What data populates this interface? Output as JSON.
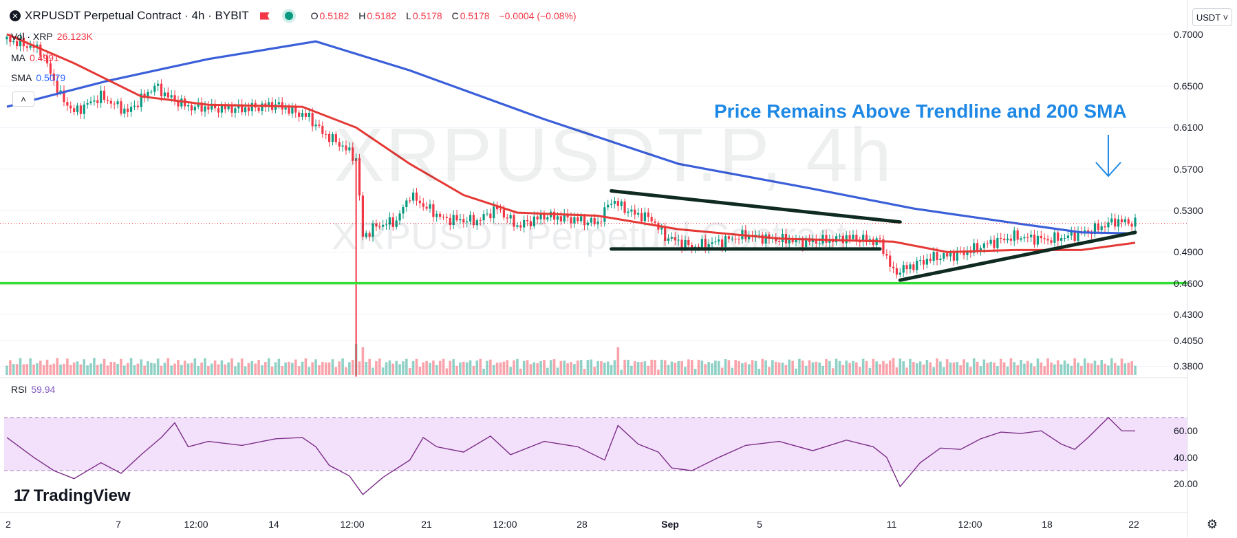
{
  "header": {
    "symbol_icon": "xrp-coin-icon",
    "title": "XRPUSDT Perpetual Contract · 4h · BYBIT",
    "flag_icon": "red-flag-icon",
    "status_icon": "market-open-dot-icon",
    "ohlc": {
      "o_label": "O",
      "o": "0.5182",
      "h_label": "H",
      "h": "0.5182",
      "l_label": "L",
      "l": "0.5178",
      "c_label": "C",
      "c": "0.5178",
      "change": "−0.0004 (−0.08%)"
    },
    "currency_button": "USDT ˅"
  },
  "legends": [
    {
      "name": "Vol · XRP",
      "value": "26.123K",
      "color": "#f23645"
    },
    {
      "name": "MA",
      "value": "0.4991",
      "color": "#f23645"
    },
    {
      "name": "SMA",
      "value": "0.5079",
      "color": "#2962ff"
    }
  ],
  "collapse_label": "˄",
  "watermark": {
    "line1": "XRPUSDT.P, 4h",
    "line2": "XRPUSDT Perpetual Contract"
  },
  "annotation": "Price Remains Above Trendline and 200 SMA",
  "rsi_legend": {
    "name": "RSI",
    "value": "59.94",
    "color": "#7e57c2"
  },
  "price_axis": [
    "0.7000",
    "0.6500",
    "0.6100",
    "0.5700",
    "0.5300",
    "0.4900",
    "0.4600",
    "0.4300",
    "0.4050",
    "0.3800"
  ],
  "rsi_axis": [
    "60.00",
    "40.00",
    "20.00"
  ],
  "time_axis": [
    {
      "label": "2",
      "bold": false
    },
    {
      "label": "7",
      "bold": false
    },
    {
      "label": "12:00",
      "bold": false
    },
    {
      "label": "14",
      "bold": false
    },
    {
      "label": "12:00",
      "bold": false
    },
    {
      "label": "21",
      "bold": false
    },
    {
      "label": "12:00",
      "bold": false
    },
    {
      "label": "28",
      "bold": false
    },
    {
      "label": "Sep",
      "bold": true
    },
    {
      "label": "5",
      "bold": false
    },
    {
      "label": "11",
      "bold": false
    },
    {
      "label": "12:00",
      "bold": false
    },
    {
      "label": "18",
      "bold": false
    },
    {
      "label": "22",
      "bold": false
    }
  ],
  "brand": "TradingView",
  "brand_icon": "tradingview-logo-icon",
  "settings_icon": "gear-icon",
  "colors": {
    "up": "#089981",
    "down": "#f23645",
    "ma": "#e53935",
    "sma": "#3a5fd9",
    "support": "#33dd33",
    "trendline": "#0f2a20",
    "rsi": "#7b2d87",
    "rsi_band": "#f3e1fb",
    "arrow": "#1e88e5"
  },
  "chart_data": {
    "type": "candlestick",
    "price_axis_range": [
      0.365,
      0.715
    ],
    "rsi_range": [
      0,
      100
    ],
    "rsi_band": [
      30,
      70
    ],
    "support_level": 0.46,
    "last_price_line": 0.5178,
    "price_path": [
      {
        "t": 0,
        "p": 0.695
      },
      {
        "t": 5,
        "p": 0.685
      },
      {
        "t": 8,
        "p": 0.64
      },
      {
        "t": 10,
        "p": 0.625
      },
      {
        "t": 14,
        "p": 0.64
      },
      {
        "t": 18,
        "p": 0.625
      },
      {
        "t": 22,
        "p": 0.65
      },
      {
        "t": 24,
        "p": 0.64
      },
      {
        "t": 27,
        "p": 0.63
      },
      {
        "t": 35,
        "p": 0.628
      },
      {
        "t": 40,
        "p": 0.632
      },
      {
        "t": 45,
        "p": 0.62
      },
      {
        "t": 47,
        "p": 0.605
      },
      {
        "t": 50,
        "p": 0.592
      },
      {
        "t": 52,
        "p": 0.58
      },
      {
        "t": 53,
        "p": 0.505
      },
      {
        "t": 55,
        "p": 0.515
      },
      {
        "t": 58,
        "p": 0.52
      },
      {
        "t": 60,
        "p": 0.545
      },
      {
        "t": 62,
        "p": 0.535
      },
      {
        "t": 65,
        "p": 0.522
      },
      {
        "t": 70,
        "p": 0.52
      },
      {
        "t": 73,
        "p": 0.532
      },
      {
        "t": 76,
        "p": 0.515
      },
      {
        "t": 80,
        "p": 0.525
      },
      {
        "t": 84,
        "p": 0.522
      },
      {
        "t": 88,
        "p": 0.518
      },
      {
        "t": 90,
        "p": 0.54
      },
      {
        "t": 93,
        "p": 0.528
      },
      {
        "t": 96,
        "p": 0.522
      },
      {
        "t": 98,
        "p": 0.505
      },
      {
        "t": 102,
        "p": 0.495
      },
      {
        "t": 106,
        "p": 0.5
      },
      {
        "t": 110,
        "p": 0.506
      },
      {
        "t": 115,
        "p": 0.502
      },
      {
        "t": 120,
        "p": 0.5
      },
      {
        "t": 125,
        "p": 0.504
      },
      {
        "t": 130,
        "p": 0.5
      },
      {
        "t": 132,
        "p": 0.47
      },
      {
        "t": 134,
        "p": 0.475
      },
      {
        "t": 138,
        "p": 0.485
      },
      {
        "t": 142,
        "p": 0.488
      },
      {
        "t": 146,
        "p": 0.498
      },
      {
        "t": 150,
        "p": 0.505
      },
      {
        "t": 155,
        "p": 0.502
      },
      {
        "t": 158,
        "p": 0.505
      },
      {
        "t": 162,
        "p": 0.512
      },
      {
        "t": 165,
        "p": 0.52
      },
      {
        "t": 168,
        "p": 0.518
      }
    ],
    "ma_path": [
      {
        "t": 0,
        "p": 0.7
      },
      {
        "t": 10,
        "p": 0.672
      },
      {
        "t": 20,
        "p": 0.64
      },
      {
        "t": 30,
        "p": 0.632
      },
      {
        "t": 44,
        "p": 0.63
      },
      {
        "t": 52,
        "p": 0.61
      },
      {
        "t": 60,
        "p": 0.575
      },
      {
        "t": 68,
        "p": 0.545
      },
      {
        "t": 76,
        "p": 0.528
      },
      {
        "t": 88,
        "p": 0.525
      },
      {
        "t": 100,
        "p": 0.512
      },
      {
        "t": 115,
        "p": 0.503
      },
      {
        "t": 132,
        "p": 0.5
      },
      {
        "t": 140,
        "p": 0.49
      },
      {
        "t": 150,
        "p": 0.492
      },
      {
        "t": 160,
        "p": 0.492
      },
      {
        "t": 168,
        "p": 0.499
      }
    ],
    "sma_path": [
      {
        "t": 0,
        "p": 0.63
      },
      {
        "t": 15,
        "p": 0.655
      },
      {
        "t": 30,
        "p": 0.676
      },
      {
        "t": 46,
        "p": 0.693
      },
      {
        "t": 60,
        "p": 0.665
      },
      {
        "t": 80,
        "p": 0.618
      },
      {
        "t": 100,
        "p": 0.575
      },
      {
        "t": 120,
        "p": 0.551
      },
      {
        "t": 135,
        "p": 0.532
      },
      {
        "t": 150,
        "p": 0.518
      },
      {
        "t": 160,
        "p": 0.509
      },
      {
        "t": 168,
        "p": 0.508
      }
    ],
    "trendlines": [
      {
        "from": {
          "t": 90,
          "p": 0.549
        },
        "to": {
          "t": 133,
          "p": 0.519
        }
      },
      {
        "from": {
          "t": 90,
          "p": 0.493
        },
        "to": {
          "t": 130,
          "p": 0.493
        }
      },
      {
        "from": {
          "t": 133,
          "p": 0.463
        },
        "to": {
          "t": 168,
          "p": 0.509
        }
      }
    ],
    "rsi_path": [
      {
        "t": 0,
        "p": 55
      },
      {
        "t": 4,
        "p": 40
      },
      {
        "t": 7,
        "p": 30
      },
      {
        "t": 10,
        "p": 24
      },
      {
        "t": 14,
        "p": 36
      },
      {
        "t": 17,
        "p": 28
      },
      {
        "t": 20,
        "p": 42
      },
      {
        "t": 23,
        "p": 55
      },
      {
        "t": 25,
        "p": 66
      },
      {
        "t": 27,
        "p": 48
      },
      {
        "t": 30,
        "p": 52
      },
      {
        "t": 35,
        "p": 49
      },
      {
        "t": 40,
        "p": 54
      },
      {
        "t": 44,
        "p": 55
      },
      {
        "t": 46,
        "p": 48
      },
      {
        "t": 48,
        "p": 34
      },
      {
        "t": 51,
        "p": 26
      },
      {
        "t": 53,
        "p": 12
      },
      {
        "t": 56,
        "p": 25
      },
      {
        "t": 60,
        "p": 38
      },
      {
        "t": 62,
        "p": 55
      },
      {
        "t": 64,
        "p": 48
      },
      {
        "t": 68,
        "p": 44
      },
      {
        "t": 72,
        "p": 56
      },
      {
        "t": 75,
        "p": 42
      },
      {
        "t": 80,
        "p": 52
      },
      {
        "t": 85,
        "p": 48
      },
      {
        "t": 89,
        "p": 38
      },
      {
        "t": 91,
        "p": 64
      },
      {
        "t": 94,
        "p": 50
      },
      {
        "t": 97,
        "p": 44
      },
      {
        "t": 99,
        "p": 32
      },
      {
        "t": 102,
        "p": 30
      },
      {
        "t": 106,
        "p": 40
      },
      {
        "t": 110,
        "p": 49
      },
      {
        "t": 115,
        "p": 52
      },
      {
        "t": 120,
        "p": 45
      },
      {
        "t": 125,
        "p": 53
      },
      {
        "t": 129,
        "p": 48
      },
      {
        "t": 131,
        "p": 40
      },
      {
        "t": 133,
        "p": 18
      },
      {
        "t": 136,
        "p": 36
      },
      {
        "t": 139,
        "p": 47
      },
      {
        "t": 142,
        "p": 46
      },
      {
        "t": 145,
        "p": 54
      },
      {
        "t": 148,
        "p": 59
      },
      {
        "t": 151,
        "p": 58
      },
      {
        "t": 154,
        "p": 60
      },
      {
        "t": 157,
        "p": 50
      },
      {
        "t": 159,
        "p": 46
      },
      {
        "t": 161,
        "p": 55
      },
      {
        "t": 164,
        "p": 70
      },
      {
        "t": 166,
        "p": 60
      },
      {
        "t": 168,
        "p": 59.94
      }
    ],
    "volume_spikes": [
      {
        "t": 52,
        "v": 1.0
      },
      {
        "t": 53,
        "v": 0.9
      },
      {
        "t": 91,
        "v": 0.9
      },
      {
        "t": 132,
        "v": 0.55
      }
    ]
  }
}
